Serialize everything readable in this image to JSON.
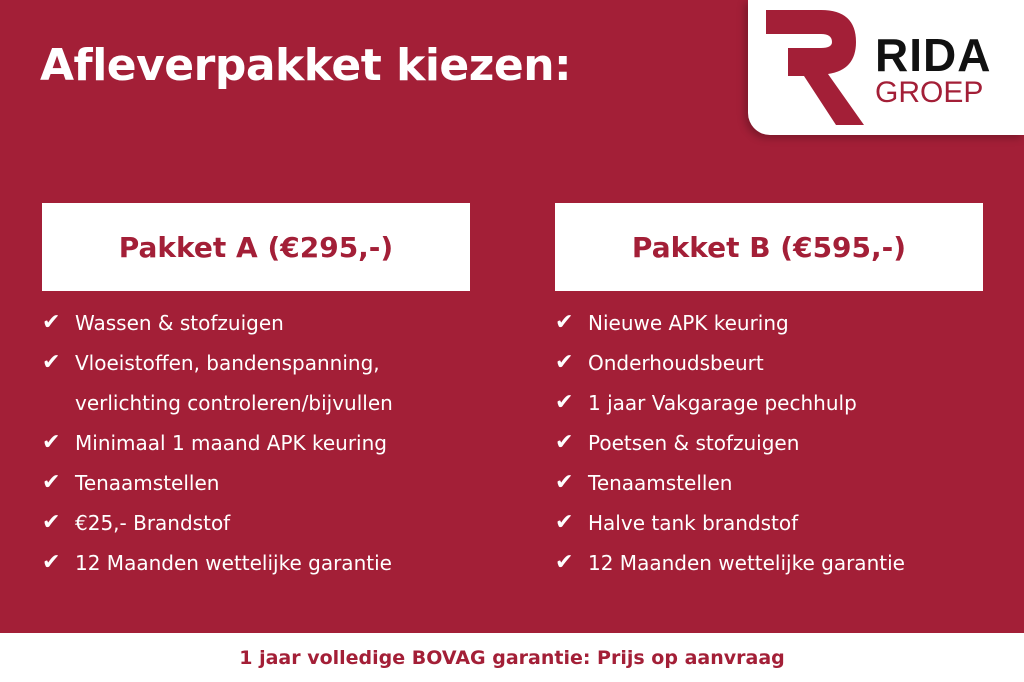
{
  "title": "Afleverpakket kiezen:",
  "logo": {
    "mark": "R",
    "name": "RIDA",
    "sub": "GROEP"
  },
  "colors": {
    "background": "#a31f37",
    "accent": "#a31f37",
    "panel": "#ffffff"
  },
  "packages": [
    {
      "title": "Pakket A (€295,-)",
      "items": [
        "Wassen & stofzuigen",
        "Vloeistoffen, bandenspanning,",
        "verlichting controleren/bijvullen",
        "Minimaal 1 maand APK keuring",
        "Tenaamstellen",
        "€25,- Brandstof",
        "12 Maanden wettelijke garantie"
      ]
    },
    {
      "title": "Pakket B (€595,-)",
      "items": [
        "Nieuwe APK keuring",
        "Onderhoudsbeurt",
        "1 jaar Vakgarage pechhulp",
        "Poetsen & stofzuigen",
        "Tenaamstellen",
        "Halve tank brandstof",
        "12 Maanden wettelijke garantie"
      ]
    }
  ],
  "check_icon": "checkmark-icon",
  "footer": "1 jaar volledige BOVAG garantie: Prijs op aanvraag"
}
